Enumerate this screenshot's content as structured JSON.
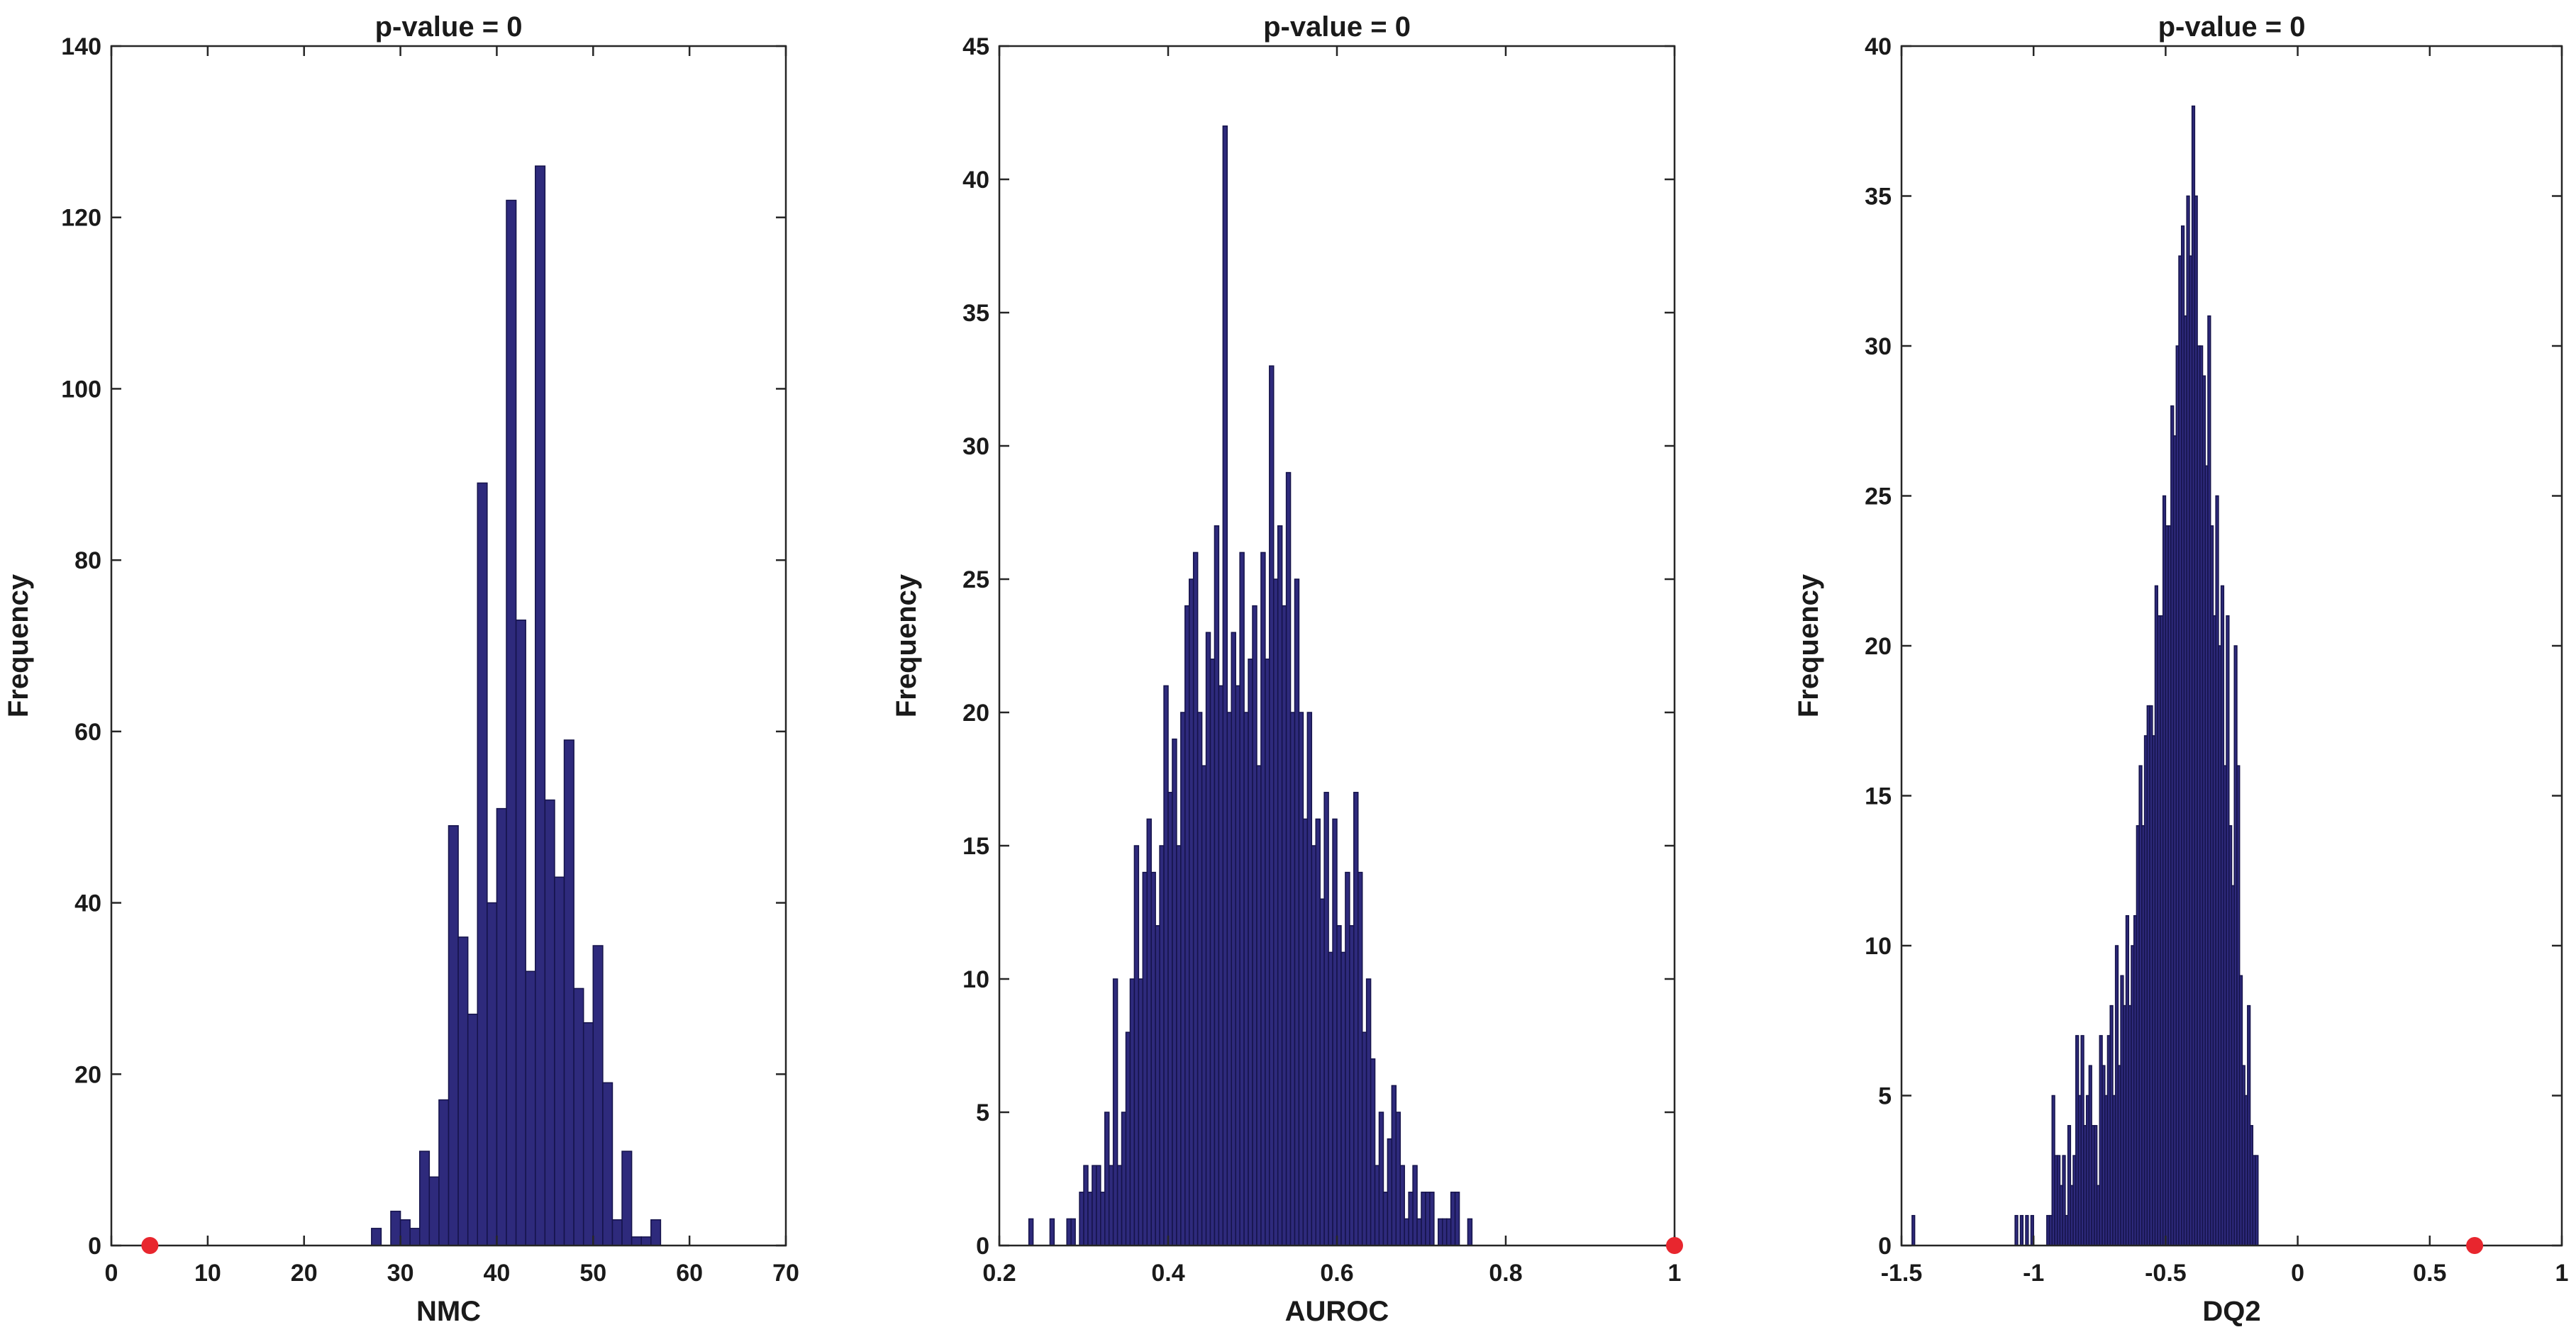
{
  "chart_data": [
    {
      "type": "bar",
      "subtype": "histogram",
      "title": "p-value = 0",
      "xlabel": "NMC",
      "ylabel": "Frequency",
      "xlim": [
        0,
        70
      ],
      "ylim": [
        0,
        140
      ],
      "xticks": [
        0,
        10,
        20,
        30,
        40,
        50,
        60,
        70
      ],
      "yticks": [
        0,
        20,
        40,
        60,
        80,
        100,
        120,
        140
      ],
      "bin_start": 27,
      "bin_width": 1,
      "values": [
        2,
        0,
        4,
        3,
        2,
        11,
        8,
        17,
        49,
        36,
        27,
        89,
        40,
        51,
        122,
        73,
        32,
        126,
        52,
        43,
        59,
        30,
        26,
        35,
        19,
        3,
        11,
        1,
        1,
        3
      ],
      "marker": {
        "x": 4,
        "y": 0,
        "color": "#e8262e"
      },
      "grid": false,
      "bar_color": "#2e2a7c"
    },
    {
      "type": "bar",
      "subtype": "histogram",
      "title": "p-value = 0",
      "xlabel": "AUROC",
      "ylabel": "Frequency",
      "xlim": [
        0.2,
        1
      ],
      "ylim": [
        0,
        45
      ],
      "xticks": [
        0.2,
        0.4,
        0.6,
        0.8,
        1
      ],
      "yticks": [
        0,
        5,
        10,
        15,
        20,
        25,
        30,
        35,
        40,
        45
      ],
      "bin_start": 0.235,
      "bin_width": 0.005,
      "values": [
        1,
        0,
        0,
        0,
        0,
        1,
        0,
        0,
        0,
        1,
        1,
        0,
        2,
        3,
        2,
        3,
        3,
        2,
        5,
        3,
        10,
        3,
        5,
        8,
        10,
        15,
        10,
        14,
        16,
        14,
        12,
        15,
        21,
        17,
        19,
        15,
        20,
        24,
        25,
        26,
        20,
        18,
        23,
        22,
        27,
        21,
        42,
        20,
        23,
        21,
        26,
        20,
        22,
        24,
        18,
        26,
        22,
        33,
        25,
        27,
        24,
        29,
        20,
        25,
        20,
        16,
        20,
        15,
        16,
        13,
        17,
        11,
        16,
        12,
        11,
        14,
        12,
        17,
        14,
        8,
        10,
        7,
        3,
        5,
        2,
        4,
        6,
        5,
        3,
        1,
        2,
        3,
        1,
        2,
        2,
        2,
        0,
        1,
        1,
        1,
        2,
        2,
        0,
        0,
        1
      ],
      "marker": {
        "x": 1,
        "y": 0,
        "color": "#e8262e"
      },
      "grid": false,
      "bar_color": "#2e2a7c"
    },
    {
      "type": "bar",
      "subtype": "histogram",
      "title": "p-value = 0",
      "xlabel": "DQ2",
      "ylabel": "Frequency",
      "xlim": [
        -1.5,
        1
      ],
      "ylim": [
        0,
        40
      ],
      "xticks": [
        -1.5,
        -1,
        -0.5,
        0,
        0.5,
        1
      ],
      "xtick_labels": [
        "-1.5",
        "-1",
        "-0.5",
        "0",
        "0.5",
        "1"
      ],
      "yticks": [
        0,
        5,
        10,
        15,
        20,
        25,
        30,
        35,
        40
      ],
      "bin_start": -1.46,
      "bin_width": 0.01,
      "values": [
        1,
        0,
        0,
        0,
        0,
        0,
        0,
        0,
        0,
        0,
        0,
        0,
        0,
        0,
        0,
        0,
        0,
        0,
        0,
        0,
        0,
        0,
        0,
        0,
        0,
        0,
        0,
        0,
        0,
        0,
        0,
        0,
        0,
        0,
        0,
        0,
        0,
        0,
        0,
        1,
        0,
        1,
        0,
        1,
        0,
        1,
        0,
        0,
        0,
        0,
        0,
        1,
        1,
        5,
        3,
        3,
        2,
        3,
        1,
        4,
        2,
        3,
        7,
        5,
        7,
        4,
        5,
        6,
        4,
        4,
        2,
        7,
        6,
        5,
        7,
        8,
        5,
        10,
        6,
        9,
        8,
        11,
        8,
        10,
        11,
        14,
        16,
        14,
        17,
        18,
        18,
        17,
        22,
        21,
        21,
        25,
        24,
        24,
        28,
        27,
        30,
        33,
        34,
        31,
        35,
        33,
        38,
        35,
        30,
        30,
        29,
        26,
        31,
        24,
        21,
        25,
        20,
        22,
        16,
        21,
        14,
        12,
        20,
        16,
        9,
        6,
        5,
        8,
        4,
        3,
        3
      ],
      "marker": {
        "x": 0.67,
        "y": 0,
        "color": "#e8262e"
      },
      "grid": false,
      "bar_color": "#2e2a7c"
    }
  ]
}
